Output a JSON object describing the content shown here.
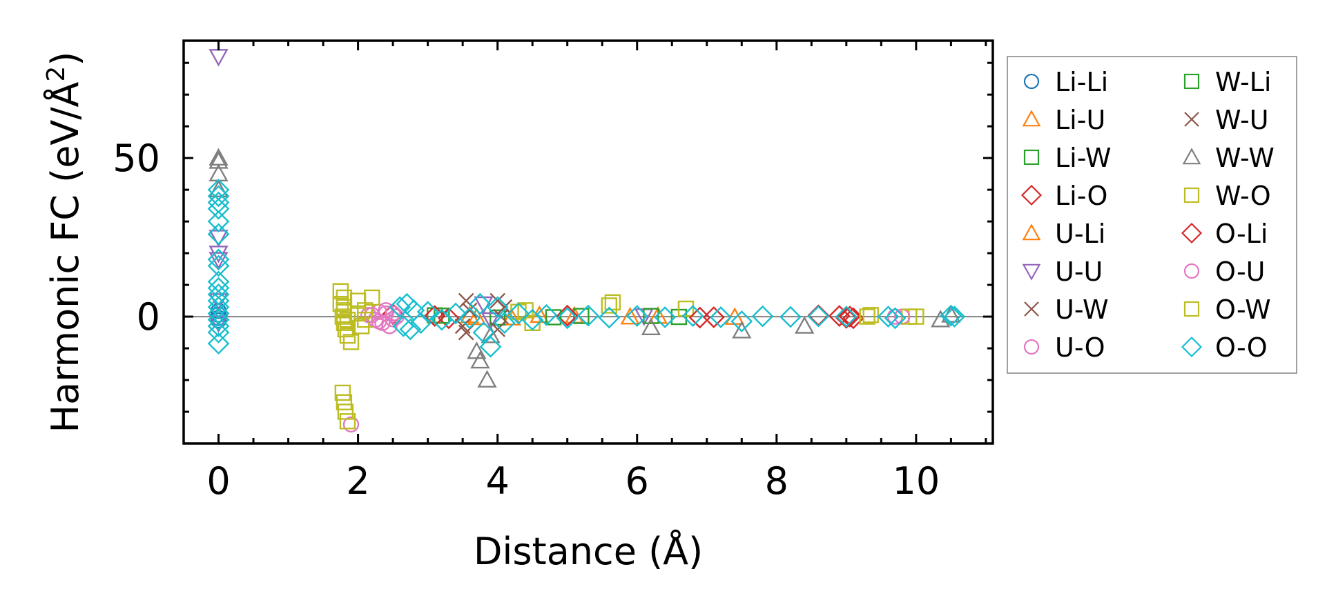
{
  "chart_data": {
    "type": "scatter",
    "title": "",
    "xlabel": "Distance (Å)",
    "ylabel_prefix": "Harmonic FC (eV/Å",
    "ylabel_sup": "2",
    "ylabel_suffix": ")",
    "xlim": [
      -0.5,
      11.1
    ],
    "ylim": [
      -40,
      87
    ],
    "x_ticks": [
      0,
      2,
      4,
      6,
      8,
      10
    ],
    "x_tick_labels": [
      "0",
      "2",
      "4",
      "6",
      "8",
      "10"
    ],
    "y_ticks": [
      0,
      50
    ],
    "y_tick_labels": [
      "0",
      "50"
    ],
    "zero_line": true,
    "legend_position": "outside-right",
    "series": [
      {
        "name": "Li-Li",
        "color": "#1f77b4",
        "marker": "circle",
        "points": [
          [
            0,
            0.6
          ],
          [
            0,
            -0.4
          ],
          [
            0,
            1.8
          ],
          [
            0,
            -1.2
          ]
        ]
      },
      {
        "name": "Li-U",
        "color": "#ff7f0e",
        "marker": "triangle",
        "points": [
          [
            3.6,
            0.3
          ],
          [
            4.2,
            -0.4
          ],
          [
            5.1,
            0.2
          ],
          [
            6.3,
            0.1
          ],
          [
            7.4,
            -0.2
          ]
        ]
      },
      {
        "name": "Li-W",
        "color": "#2ca02c",
        "marker": "square",
        "points": [
          [
            3.1,
            0.4
          ],
          [
            4.0,
            -0.3
          ],
          [
            5.2,
            0.2
          ],
          [
            6.6,
            -0.1
          ]
        ]
      },
      {
        "name": "Li-O",
        "color": "#d62728",
        "marker": "diamond",
        "points": [
          [
            2.5,
            0.8
          ],
          [
            3.3,
            -0.5
          ],
          [
            5.0,
            0.3
          ],
          [
            7.1,
            -0.2
          ],
          [
            8.6,
            0.4
          ],
          [
            9.05,
            0.0
          ],
          [
            9.1,
            -0.5
          ]
        ]
      },
      {
        "name": "U-Li",
        "color": "#ff7f0e",
        "marker": "triangle",
        "points": [
          [
            3.7,
            -0.3
          ],
          [
            4.6,
            0.4
          ],
          [
            5.9,
            -0.1
          ]
        ]
      },
      {
        "name": "U-U",
        "color": "#9467bd",
        "marker": "tri-down",
        "points": [
          [
            0,
            82
          ],
          [
            0,
            25
          ],
          [
            0,
            20
          ],
          [
            0,
            18
          ],
          [
            0,
            5
          ],
          [
            0,
            -2
          ],
          [
            3.8,
            4
          ],
          [
            3.9,
            -1
          ],
          [
            6.1,
            0.2
          ]
        ]
      },
      {
        "name": "U-W",
        "color": "#8c564b",
        "marker": "x",
        "points": [
          [
            3.55,
            5
          ],
          [
            3.55,
            -5
          ],
          [
            3.6,
            2
          ],
          [
            4.0,
            5
          ],
          [
            4.0,
            -4
          ],
          [
            4.05,
            0
          ]
        ]
      },
      {
        "name": "U-O",
        "color": "#e377c2",
        "marker": "circle",
        "points": [
          [
            1.9,
            -34
          ],
          [
            2.15,
            0.5
          ],
          [
            2.25,
            -1
          ],
          [
            2.3,
            1.5
          ],
          [
            2.35,
            -2
          ],
          [
            2.4,
            2
          ],
          [
            2.45,
            -3
          ],
          [
            2.5,
            1
          ],
          [
            2.55,
            0
          ]
        ]
      },
      {
        "name": "W-Li",
        "color": "#2ca02c",
        "marker": "square",
        "points": [
          [
            3.2,
            0.3
          ],
          [
            4.8,
            -0.2
          ],
          [
            6.2,
            0.2
          ]
        ]
      },
      {
        "name": "W-U",
        "color": "#8c564b",
        "marker": "x",
        "points": [
          [
            3.5,
            -3
          ],
          [
            4.1,
            3
          ]
        ]
      },
      {
        "name": "W-W",
        "color": "#7f7f7f",
        "marker": "triangle",
        "points": [
          [
            0,
            50
          ],
          [
            0,
            49
          ],
          [
            0,
            45
          ],
          [
            0,
            40
          ],
          [
            3.7,
            -11
          ],
          [
            3.75,
            -14
          ],
          [
            3.85,
            -20
          ],
          [
            3.9,
            -6
          ],
          [
            6.2,
            -3.5
          ],
          [
            7.5,
            -4.5
          ],
          [
            8.4,
            -3
          ],
          [
            10.35,
            -1
          ],
          [
            10.5,
            0.5
          ]
        ]
      },
      {
        "name": "W-O",
        "color": "#bcbd22",
        "marker": "square",
        "points": [
          [
            1.75,
            8
          ],
          [
            1.8,
            6
          ],
          [
            1.75,
            4
          ],
          [
            1.8,
            2
          ],
          [
            1.78,
            0
          ],
          [
            1.8,
            -2
          ],
          [
            1.82,
            -4
          ],
          [
            1.85,
            -6
          ],
          [
            1.9,
            -8
          ],
          [
            1.78,
            -24
          ],
          [
            1.8,
            -27
          ],
          [
            1.82,
            -30
          ],
          [
            1.85,
            -33
          ],
          [
            2.0,
            5
          ],
          [
            2.05,
            -3
          ],
          [
            2.1,
            2
          ],
          [
            2.2,
            6
          ],
          [
            2.1,
            -1
          ],
          [
            4.4,
            2
          ],
          [
            4.5,
            -2
          ],
          [
            5.65,
            4.5
          ],
          [
            6.7,
            2.5
          ],
          [
            9.3,
            0
          ],
          [
            9.35,
            0.5
          ],
          [
            10.0,
            0
          ]
        ]
      },
      {
        "name": "O-Li",
        "color": "#d62728",
        "marker": "diamond",
        "points": [
          [
            3.1,
            0.2
          ],
          [
            6.9,
            -0.3
          ],
          [
            8.9,
            0.2
          ],
          [
            9.0,
            -0.4
          ]
        ]
      },
      {
        "name": "O-U",
        "color": "#e377c2",
        "marker": "circle",
        "points": [
          [
            2.2,
            0.5
          ],
          [
            2.3,
            -1.5
          ],
          [
            2.4,
            1
          ],
          [
            2.5,
            -0.8
          ],
          [
            9.7,
            0
          ],
          [
            9.8,
            0
          ]
        ]
      },
      {
        "name": "O-W",
        "color": "#bcbd22",
        "marker": "square",
        "points": [
          [
            1.8,
            3
          ],
          [
            1.85,
            -1
          ],
          [
            2.0,
            1
          ],
          [
            4.3,
            1.5
          ],
          [
            5.6,
            3.5
          ],
          [
            9.9,
            0
          ]
        ]
      },
      {
        "name": "O-O",
        "color": "#17becf",
        "marker": "diamond",
        "points": [
          [
            0,
            40
          ],
          [
            0,
            38
          ],
          [
            0,
            36
          ],
          [
            0,
            34
          ],
          [
            0,
            30
          ],
          [
            0,
            26
          ],
          [
            0,
            18
          ],
          [
            0,
            16
          ],
          [
            0,
            11
          ],
          [
            0,
            9
          ],
          [
            0,
            7
          ],
          [
            0,
            5
          ],
          [
            0,
            3
          ],
          [
            0,
            1
          ],
          [
            0,
            -1
          ],
          [
            0,
            -3
          ],
          [
            0,
            -5
          ],
          [
            0,
            -8.5
          ],
          [
            2.6,
            3
          ],
          [
            2.65,
            -3
          ],
          [
            2.7,
            4
          ],
          [
            2.75,
            -4
          ],
          [
            2.8,
            2
          ],
          [
            2.9,
            -2
          ],
          [
            3.0,
            1.5
          ],
          [
            3.2,
            -1
          ],
          [
            3.4,
            1
          ],
          [
            3.6,
            -0.5
          ],
          [
            3.75,
            4
          ],
          [
            3.8,
            -5
          ],
          [
            3.9,
            -9.5
          ],
          [
            4.0,
            3
          ],
          [
            4.1,
            -2
          ],
          [
            4.3,
            1
          ],
          [
            4.5,
            -1
          ],
          [
            4.7,
            0.5
          ],
          [
            5.0,
            -0.5
          ],
          [
            5.3,
            0.3
          ],
          [
            5.6,
            -0.3
          ],
          [
            6.0,
            0.2
          ],
          [
            6.4,
            -0.2
          ],
          [
            6.8,
            0.2
          ],
          [
            7.2,
            -0.2
          ],
          [
            7.5,
            -1.5
          ],
          [
            7.8,
            0.1
          ],
          [
            8.2,
            -0.1
          ],
          [
            8.6,
            0.1
          ],
          [
            9.0,
            0
          ],
          [
            9.6,
            0
          ],
          [
            9.7,
            -0.5
          ],
          [
            10.55,
            0
          ],
          [
            10.5,
            0.3
          ]
        ]
      }
    ]
  }
}
